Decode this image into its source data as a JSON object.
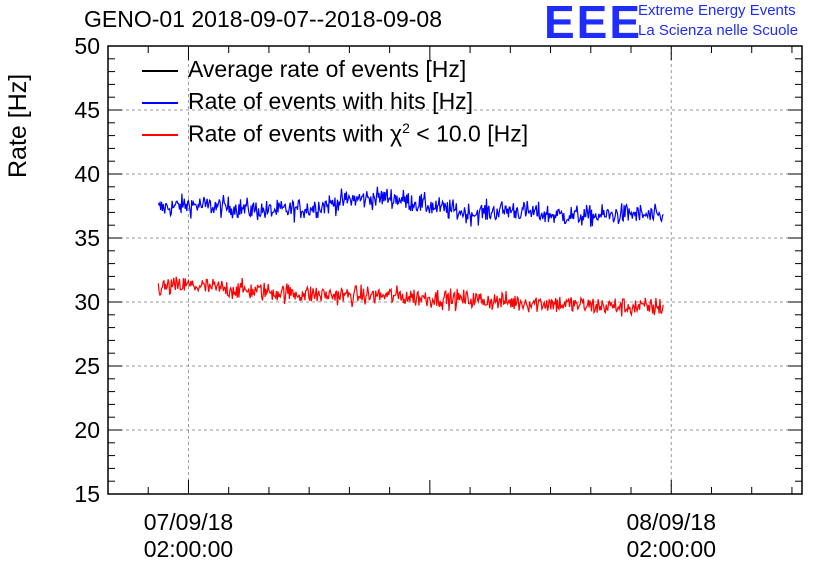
{
  "chart_data": {
    "type": "line",
    "title": "GENO-01 2018-09-07--2018-09-08",
    "ylabel": "Rate [Hz]",
    "xlabel": "",
    "ylim": [
      15,
      50
    ],
    "yticks": [
      15,
      20,
      25,
      30,
      35,
      40,
      45,
      50
    ],
    "xlim_hours": [
      0,
      34.5
    ],
    "x_unit": "hours since 2018-09-06 22:00:00",
    "x_data_range_hours": [
      2.5,
      27.6
    ],
    "xticks": [
      {
        "hours": 4,
        "date": "07/09/18",
        "time": "02:00:00"
      },
      {
        "hours": 28,
        "date": "08/09/18",
        "time": "02:00:00"
      }
    ],
    "grid": true,
    "legend_position": "top-left",
    "series": [
      {
        "name": "Average rate of events [Hz]",
        "color": "#000000",
        "x_hours": [],
        "values": []
      },
      {
        "name": "Rate of events with hits [Hz]",
        "color": "#0000ff",
        "x_hours": [
          2.5,
          4,
          6,
          8,
          10,
          12,
          14,
          16,
          18,
          20,
          22,
          24,
          26,
          27.6
        ],
        "values": [
          37.3,
          37.6,
          37.4,
          37.1,
          37.3,
          38.0,
          38.2,
          37.5,
          36.9,
          37.2,
          36.8,
          36.7,
          36.9,
          36.6
        ],
        "noise_amplitude": 1.4
      },
      {
        "name": "Rate of events with χ² < 10.0 [Hz]",
        "color": "#ff0000",
        "x_hours": [
          2.5,
          4,
          6,
          8,
          10,
          12,
          14,
          16,
          18,
          20,
          22,
          24,
          26,
          27.6
        ],
        "values": [
          31.1,
          31.3,
          31.0,
          30.8,
          30.6,
          30.5,
          30.5,
          30.3,
          30.2,
          30.0,
          29.9,
          29.7,
          29.6,
          29.6
        ],
        "noise_amplitude": 1.3
      }
    ]
  },
  "logo": {
    "mark": "EEE",
    "line1": "Extreme Energy Events",
    "line2": "La Scienza nelle Scuole",
    "color": "#1f2cff"
  },
  "legend_items": [
    {
      "prefix": "Average rate of events [Hz]",
      "sup": "",
      "suffix": ""
    },
    {
      "prefix": "Rate of events with hits [Hz]",
      "sup": "",
      "suffix": ""
    },
    {
      "prefix": "Rate of events with χ",
      "sup": "2",
      "suffix": " < 10.0 [Hz]"
    }
  ]
}
